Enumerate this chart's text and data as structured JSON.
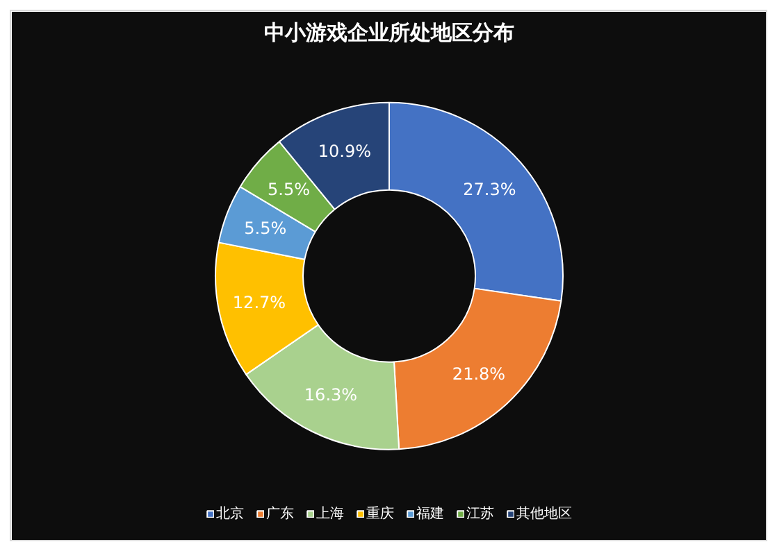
{
  "chart_data": {
    "type": "donut",
    "title": "中小游戏企业所处地区分布",
    "categories": [
      "北京",
      "广东",
      "上海",
      "重庆",
      "福建",
      "江苏",
      "其他地区"
    ],
    "values": [
      27.3,
      21.8,
      16.3,
      12.7,
      5.5,
      5.5,
      10.9
    ],
    "value_labels": [
      "27.3%",
      "21.8%",
      "16.3%",
      "12.7%",
      "5.5%",
      "5.5%",
      "10.9%"
    ],
    "colors": [
      "#4472c4",
      "#ed7d31",
      "#a9d18e",
      "#ffc000",
      "#5b9bd5",
      "#70ad47",
      "#264478"
    ],
    "legend": "bottom"
  }
}
